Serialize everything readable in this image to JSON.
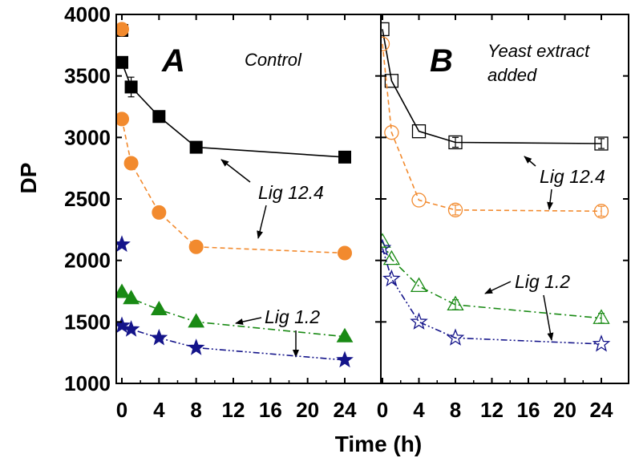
{
  "chart_data": [
    {
      "type": "line",
      "panel_label": "A",
      "condition_label": "Control",
      "xlabel": "Time (h)",
      "ylabel": "DP",
      "xlim": [
        0,
        24
      ],
      "ylim": [
        1000,
        4000
      ],
      "x_ticks": [
        "0",
        "4",
        "8",
        "12",
        "16",
        "20",
        "24"
      ],
      "y_ticks": [
        "1000",
        "1500",
        "2000",
        "2500",
        "3000",
        "3500",
        "4000"
      ],
      "annotations": [
        "Lig 12.4",
        "Lig 1.2"
      ],
      "series": [
        {
          "color": "#000000",
          "marker": "square",
          "fill": true,
          "dash": "",
          "x": [
            0,
            1,
            4,
            8,
            24
          ],
          "y": [
            3610,
            3410,
            3170,
            2920,
            2840
          ],
          "errors": [
            0,
            80,
            0,
            0,
            0
          ]
        },
        {
          "color": "#f28a2e",
          "marker": "circle",
          "fill": true,
          "dash": "6,4",
          "x": [
            0,
            1,
            4,
            8,
            24
          ],
          "y": [
            3150,
            2790,
            2390,
            2110,
            2060
          ],
          "errors": [
            0,
            0,
            0,
            0,
            0
          ]
        },
        {
          "color": "#198a14",
          "marker": "triangle",
          "fill": true,
          "dash": "9,4,2,4",
          "x": [
            0,
            1,
            4,
            8,
            24
          ],
          "y": [
            1740,
            1690,
            1600,
            1500,
            1380
          ],
          "errors": [
            0,
            0,
            0,
            0,
            0
          ]
        },
        {
          "color": "#14148a",
          "marker": "star",
          "fill": true,
          "dash": "8,3,2,3,2,3",
          "x": [
            0,
            1,
            4,
            8,
            24
          ],
          "y": [
            1470,
            1440,
            1370,
            1290,
            1190
          ],
          "errors": [
            0,
            0,
            0,
            0,
            0
          ]
        }
      ],
      "extra_points": [
        {
          "color": "#000000",
          "marker": "square",
          "fill": true,
          "x": 0,
          "y": 3870
        },
        {
          "color": "#f28a2e",
          "marker": "circle",
          "fill": true,
          "x": 0,
          "y": 3880
        },
        {
          "color": "#14148a",
          "marker": "star",
          "fill": true,
          "x": 0,
          "y": 2130
        }
      ]
    },
    {
      "type": "line",
      "panel_label": "B",
      "condition_label": "Yeast extract added",
      "xlabel": "Time (h)",
      "ylabel": "DP",
      "xlim": [
        0,
        24
      ],
      "ylim": [
        1000,
        4000
      ],
      "x_ticks": [
        "0",
        "4",
        "8",
        "12",
        "16",
        "20",
        "24"
      ],
      "annotations": [
        "Lig 12.4",
        "Lig 1.2"
      ],
      "series": [
        {
          "color": "#000000",
          "marker": "square",
          "fill": false,
          "dash": "",
          "x": [
            0,
            1,
            4,
            8,
            24
          ],
          "y": [
            3880,
            3460,
            3050,
            2960,
            2950
          ],
          "errors": [
            0,
            0,
            0,
            40,
            40
          ]
        },
        {
          "color": "#f28a2e",
          "marker": "circle",
          "fill": false,
          "dash": "6,4",
          "x": [
            0,
            1,
            4,
            8,
            24
          ],
          "y": [
            3760,
            3040,
            2490,
            2410,
            2400
          ],
          "errors": [
            0,
            0,
            0,
            40,
            40
          ]
        },
        {
          "color": "#198a14",
          "marker": "triangle",
          "fill": false,
          "dash": "9,4,2,4",
          "x": [
            0,
            1,
            4,
            8,
            24
          ],
          "y": [
            2150,
            2010,
            1790,
            1640,
            1530
          ],
          "errors": [
            0,
            0,
            0,
            40,
            40
          ]
        },
        {
          "color": "#14148a",
          "marker": "star",
          "fill": false,
          "dash": "8,3,2,3,2,3",
          "x": [
            0,
            1,
            4,
            8,
            24
          ],
          "y": [
            2100,
            1850,
            1500,
            1370,
            1320
          ],
          "errors": [
            0,
            0,
            0,
            0,
            0
          ]
        }
      ],
      "extra_points": []
    }
  ]
}
